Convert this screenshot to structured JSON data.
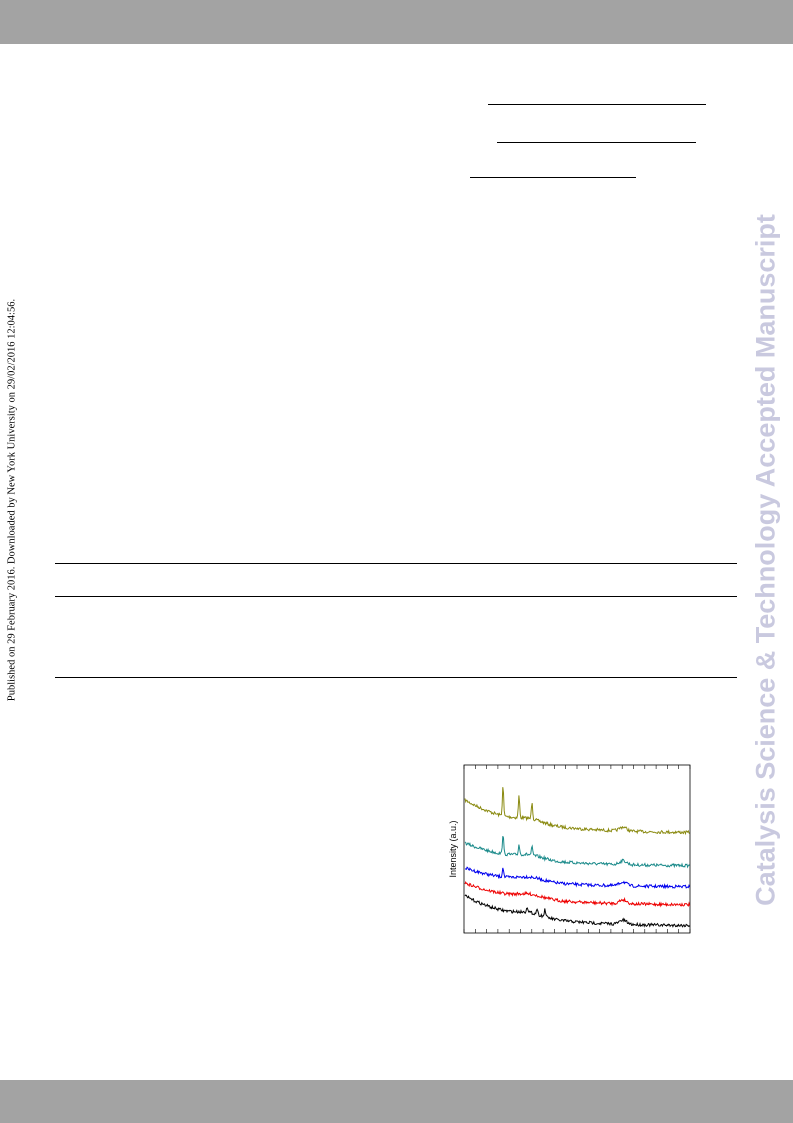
{
  "sidebar": {
    "published": "Published on 29 February 2016. Downloaded by New York University on 29/02/2016 12:04:56."
  },
  "watermark": "Catalysis Science & Technology Accepted Manuscript",
  "figure": {
    "y_label": "Intensity (a.u.)"
  }
}
